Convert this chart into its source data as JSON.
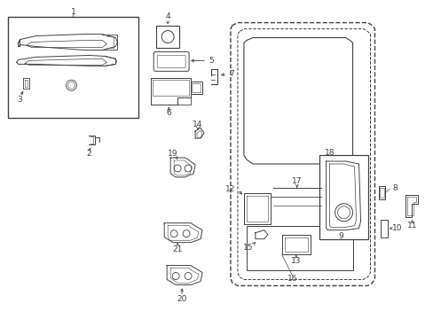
{
  "bg_color": "#ffffff",
  "line_color": "#404040",
  "fig_width": 4.89,
  "fig_height": 3.6,
  "dpi": 100,
  "label_fontsize": 6.5
}
